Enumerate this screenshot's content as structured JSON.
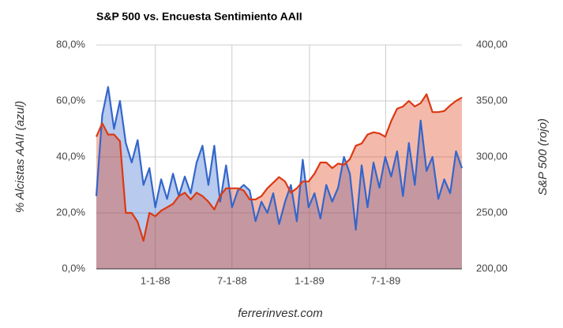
{
  "chart_data": {
    "type": "area",
    "title": "S&P 500 vs. Encuesta Sentimiento AAII",
    "ylabel": "% Alcistas AAII (azul)",
    "y2label": "S&P 500 (rojo)",
    "source": "ferrerinvest.com",
    "grid": true,
    "xlim": [
      "1987-08-14",
      "1989-12-29"
    ],
    "xticks": [
      {
        "value": "1988-01-01",
        "label": "1-1-88"
      },
      {
        "value": "1988-07-01",
        "label": "7-1-88"
      },
      {
        "value": "1989-01-01",
        "label": "1-1-89"
      },
      {
        "value": "1989-07-01",
        "label": "7-1-89"
      }
    ],
    "ylim": [
      0,
      80
    ],
    "yticks": [
      {
        "value": 0,
        "label": "0,0%"
      },
      {
        "value": 20,
        "label": "20,0%"
      },
      {
        "value": 40,
        "label": "40,0%"
      },
      {
        "value": 60,
        "label": "60,0%"
      },
      {
        "value": 80,
        "label": "80,0%"
      }
    ],
    "y2lim": [
      200,
      400
    ],
    "y2ticks": [
      {
        "value": 200,
        "label": "200,00"
      },
      {
        "value": 250,
        "label": "250,00"
      },
      {
        "value": 300,
        "label": "300,00"
      },
      {
        "value": 350,
        "label": "350,00"
      },
      {
        "value": 400,
        "label": "400,00"
      }
    ],
    "x": [
      "1987-08-14",
      "1987-08-28",
      "1987-09-11",
      "1987-09-25",
      "1987-10-09",
      "1987-10-23",
      "1987-11-06",
      "1987-11-20",
      "1987-12-04",
      "1987-12-18",
      "1988-01-01",
      "1988-01-15",
      "1988-01-29",
      "1988-02-12",
      "1988-02-26",
      "1988-03-11",
      "1988-03-25",
      "1988-04-08",
      "1988-04-22",
      "1988-05-06",
      "1988-05-20",
      "1988-06-03",
      "1988-06-17",
      "1988-07-01",
      "1988-07-15",
      "1988-07-29",
      "1988-08-12",
      "1988-08-26",
      "1988-09-09",
      "1988-09-23",
      "1988-10-07",
      "1988-10-21",
      "1988-11-04",
      "1988-11-18",
      "1988-12-02",
      "1988-12-16",
      "1988-12-30",
      "1989-01-13",
      "1989-01-27",
      "1989-02-10",
      "1989-02-24",
      "1989-03-10",
      "1989-03-24",
      "1989-04-07",
      "1989-04-21",
      "1989-05-05",
      "1989-05-19",
      "1989-06-02",
      "1989-06-16",
      "1989-06-30",
      "1989-07-14",
      "1989-07-28",
      "1989-08-11",
      "1989-08-25",
      "1989-09-08",
      "1989-09-22",
      "1989-10-06",
      "1989-10-20",
      "1989-11-03",
      "1989-11-17",
      "1989-12-01",
      "1989-12-15",
      "1989-12-29"
    ],
    "series": [
      {
        "name": "% Alcistas AAII",
        "color": "#3366cc",
        "values": [
          26,
          55,
          65,
          50,
          60,
          45,
          38,
          46,
          30,
          36,
          22,
          32,
          25,
          34,
          26,
          33,
          27,
          38,
          44,
          30,
          44,
          24,
          37,
          22,
          28,
          30,
          28,
          17,
          24,
          20,
          27,
          16,
          24,
          30,
          17,
          39,
          22,
          27,
          18,
          30,
          24,
          29,
          40,
          34,
          14,
          37,
          22,
          38,
          29,
          40,
          33,
          42,
          26,
          45,
          30,
          53,
          35,
          40,
          25,
          32,
          27,
          42,
          36
        ]
      },
      {
        "name": "S&P 500",
        "color": "#dc3912",
        "axis": "y2",
        "values": [
          318,
          330,
          320,
          320,
          314,
          250,
          250,
          242,
          225,
          250,
          247,
          252,
          255,
          258,
          265,
          268,
          262,
          268,
          265,
          260,
          253,
          265,
          272,
          272,
          272,
          270,
          262,
          262,
          265,
          272,
          277,
          282,
          278,
          268,
          272,
          278,
          278,
          285,
          295,
          295,
          290,
          294,
          293,
          298,
          310,
          312,
          320,
          322,
          321,
          318,
          332,
          343,
          345,
          350,
          345,
          348,
          356,
          340,
          340,
          341,
          346,
          350,
          353
        ]
      }
    ]
  }
}
